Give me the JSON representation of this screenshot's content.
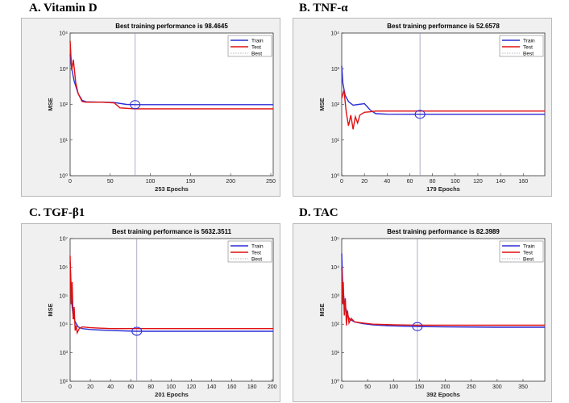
{
  "panels": [
    {
      "label": "A.  Vitamin D"
    },
    {
      "label": "B. TNF-α"
    },
    {
      "label": "C. TGF-β1"
    },
    {
      "label": "D. TAC"
    }
  ],
  "colors": {
    "train": "#2b2bd6",
    "test": "#e01010",
    "best": "#9a9ab8",
    "marker": "#2b2bd6"
  },
  "chart_data": [
    {
      "type": "line",
      "title": "Best training performance is 98.4645",
      "xlabel": "253 Epochs",
      "ylabel": "MSE",
      "y_scale": "log",
      "xlim": [
        0,
        253
      ],
      "xticks": [
        0,
        50,
        100,
        150,
        200,
        250
      ],
      "yticks": [
        1,
        10,
        100,
        1000,
        10000
      ],
      "ytick_labels": [
        "10⁰",
        "10¹",
        "10²",
        "10³",
        "10⁴"
      ],
      "best_epoch": 81,
      "best_value": 98.4645,
      "legend": [
        "Train",
        "Test",
        "Best"
      ],
      "legend_position": "top-right",
      "series": [
        {
          "name": "Train",
          "x": [
            0,
            2,
            5,
            10,
            15,
            20,
            40,
            55,
            70,
            81,
            100,
            150,
            200,
            253
          ],
          "y": [
            2500,
            1000,
            450,
            200,
            130,
            118,
            115,
            113,
            100,
            98.5,
            98.5,
            98.5,
            98.5,
            98.5
          ]
        },
        {
          "name": "Test",
          "x": [
            0,
            2,
            4,
            7,
            10,
            15,
            20,
            40,
            55,
            62,
            81,
            100,
            150,
            200,
            253
          ],
          "y": [
            6000,
            900,
            1800,
            400,
            200,
            120,
            115,
            115,
            110,
            80,
            75,
            75,
            75,
            75,
            75
          ]
        }
      ]
    },
    {
      "type": "line",
      "title": "Best training performance is 52.6578",
      "xlabel": "179 Epochs",
      "ylabel": "MSE",
      "y_scale": "log",
      "xlim": [
        0,
        179
      ],
      "xticks": [
        0,
        20,
        40,
        60,
        80,
        100,
        120,
        140,
        160
      ],
      "yticks": [
        1,
        10,
        100,
        1000,
        10000
      ],
      "ytick_labels": [
        "10⁰",
        "10¹",
        "10²",
        "10³",
        "10⁴"
      ],
      "best_epoch": 69,
      "best_value": 52.6578,
      "legend": [
        "Train",
        "Test",
        "Best"
      ],
      "legend_position": "top-right",
      "series": [
        {
          "name": "Train",
          "x": [
            0,
            1,
            3,
            6,
            10,
            15,
            20,
            25,
            30,
            40,
            69,
            100,
            179
          ],
          "y": [
            1200,
            400,
            180,
            120,
            95,
            100,
            105,
            70,
            55,
            53,
            52.7,
            52.7,
            52.7
          ]
        },
        {
          "name": "Test",
          "x": [
            0,
            2,
            4,
            6,
            8,
            10,
            12,
            14,
            16,
            20,
            25,
            30,
            40,
            69,
            100,
            179
          ],
          "y": [
            150,
            250,
            60,
            25,
            50,
            20,
            45,
            30,
            50,
            60,
            62,
            65,
            65,
            65,
            65,
            65
          ]
        }
      ]
    },
    {
      "type": "line",
      "title": "Best training performance is 5632.3511",
      "xlabel": "201 Epochs",
      "ylabel": "MSE",
      "y_scale": "log",
      "xlim": [
        0,
        201
      ],
      "xticks": [
        0,
        20,
        40,
        60,
        80,
        100,
        120,
        140,
        160,
        180,
        200
      ],
      "yticks": [
        100,
        1000,
        10000,
        100000,
        1000000,
        10000000
      ],
      "ytick_labels": [
        "10²",
        "10³",
        "10⁴",
        "10⁵",
        "10⁶",
        "10⁷"
      ],
      "best_epoch": 66,
      "best_value": 5632.3511,
      "legend": [
        "Train",
        "Test",
        "Best"
      ],
      "legend_position": "top-right",
      "series": [
        {
          "name": "Train",
          "x": [
            0,
            1,
            2,
            3,
            5,
            8,
            12,
            20,
            40,
            66,
            100,
            150,
            201
          ],
          "y": [
            1500000,
            200000,
            40000,
            20000,
            12000,
            8000,
            7000,
            6500,
            6000,
            5632,
            5632,
            5632,
            5632
          ]
        },
        {
          "name": "Test",
          "x": [
            0,
            1,
            2,
            3,
            4,
            5,
            6,
            7,
            9,
            12,
            20,
            40,
            66,
            100,
            150,
            201
          ],
          "y": [
            2500000,
            50000,
            300000,
            15000,
            40000,
            6000,
            9000,
            5000,
            7000,
            8000,
            7500,
            7000,
            7000,
            7000,
            7000,
            7000
          ]
        }
      ]
    },
    {
      "type": "line",
      "title": "Best training performance is 82.3989",
      "xlabel": "392 Epochs",
      "ylabel": "MSE",
      "y_scale": "log",
      "xlim": [
        0,
        392
      ],
      "xticks": [
        0,
        50,
        100,
        150,
        200,
        250,
        300,
        350
      ],
      "yticks": [
        1,
        10,
        100,
        1000,
        10000,
        100000
      ],
      "ytick_labels": [
        "10⁰",
        "10¹",
        "10²",
        "10³",
        "10⁴",
        "10⁵"
      ],
      "best_epoch": 146,
      "best_value": 82.3989,
      "legend": [
        "Train",
        "Test",
        "Best"
      ],
      "legend_position": "top-right",
      "series": [
        {
          "name": "Train",
          "x": [
            0,
            2,
            5,
            10,
            15,
            25,
            40,
            60,
            90,
            146,
            200,
            300,
            392
          ],
          "y": [
            30000,
            2000,
            600,
            250,
            150,
            120,
            105,
            95,
            88,
            82.4,
            80,
            78,
            78
          ]
        },
        {
          "name": "Test",
          "x": [
            0,
            2,
            3,
            5,
            7,
            9,
            11,
            14,
            18,
            25,
            40,
            60,
            100,
            146,
            200,
            300,
            392
          ],
          "y": [
            10000,
            500,
            3000,
            200,
            800,
            90,
            300,
            110,
            160,
            120,
            110,
            100,
            95,
            92,
            92,
            92,
            92
          ]
        }
      ]
    }
  ]
}
